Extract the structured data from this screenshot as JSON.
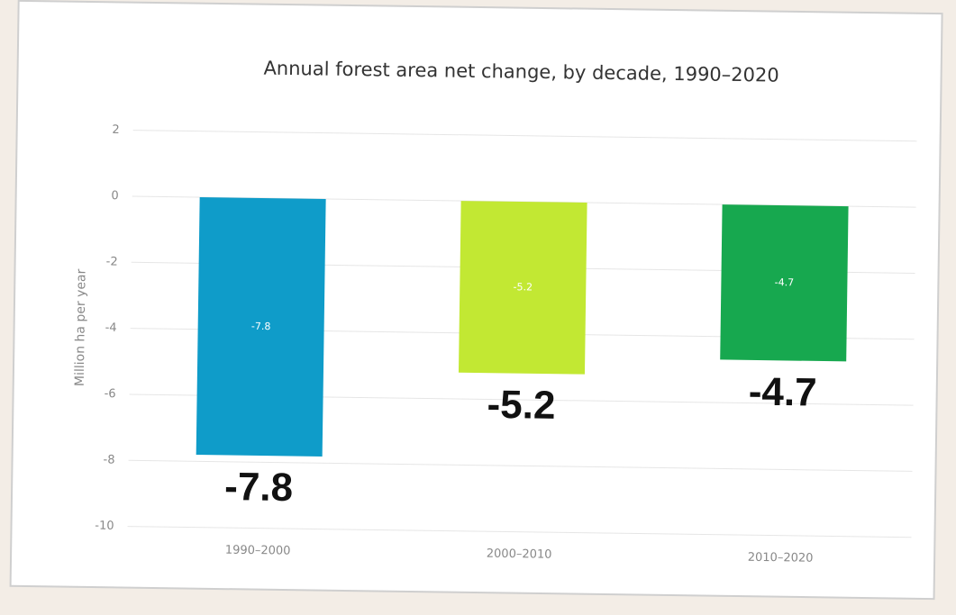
{
  "chart_data": {
    "type": "bar",
    "title": "Annual forest area net change, by decade, 1990–2020",
    "y_label": "Million ha per year",
    "categories": [
      "1990–2000",
      "2000–2010",
      "2010–2020"
    ],
    "values": [
      -7.8,
      -5.2,
      -4.7
    ],
    "colors": [
      "#0f9cc9",
      "#c2e833",
      "#17a84f"
    ],
    "ylim": [
      -10,
      2
    ],
    "yticks": [
      -10,
      -8,
      -6,
      -4,
      -2,
      0,
      2
    ],
    "grid": true
  }
}
